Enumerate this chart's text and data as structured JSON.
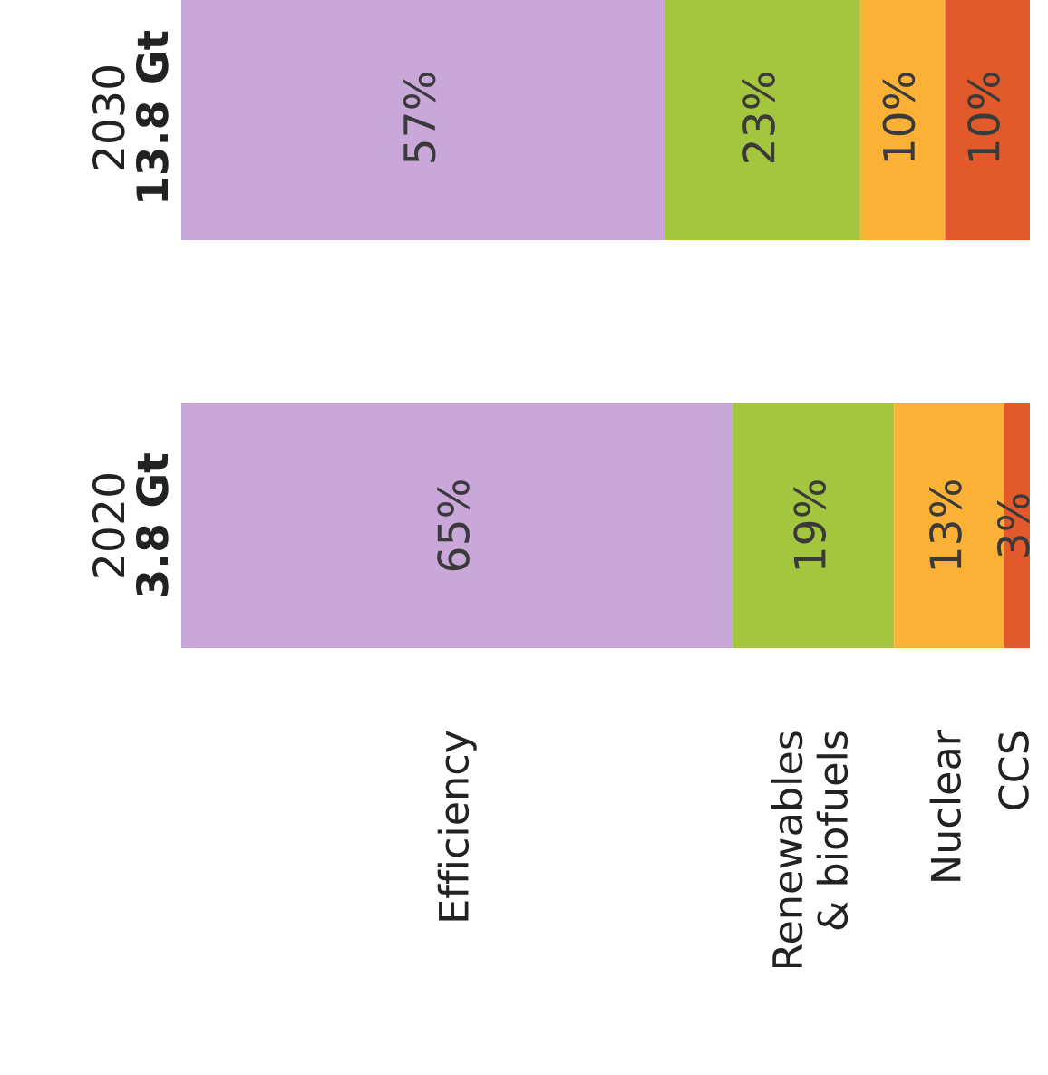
{
  "chart_data": {
    "type": "bar",
    "orientation": "horizontal",
    "stacked": true,
    "categories": [
      "2030",
      "2020"
    ],
    "series": [
      {
        "name": "Efficiency",
        "color": "#c9a7d9",
        "values": [
          57,
          65
        ],
        "value_labels": [
          "57%",
          "65%"
        ]
      },
      {
        "name": "Renewables\n& biofuels",
        "color": "#a4c53e",
        "values": [
          23,
          19
        ],
        "value_labels": [
          "23%",
          "19%"
        ]
      },
      {
        "name": "Nuclear",
        "color": "#fbb135",
        "values": [
          10,
          13
        ],
        "value_labels": [
          "10%",
          "13%"
        ]
      },
      {
        "name": "CCS",
        "color": "#e25a2c",
        "values": [
          10,
          3
        ],
        "value_labels": [
          "10%",
          "3%"
        ]
      }
    ],
    "annotations": [
      "13.8 Gt",
      "3.8 Gt"
    ],
    "xlim": [
      0,
      100
    ],
    "tick_labels": "y",
    "grid": false,
    "legend": false
  }
}
